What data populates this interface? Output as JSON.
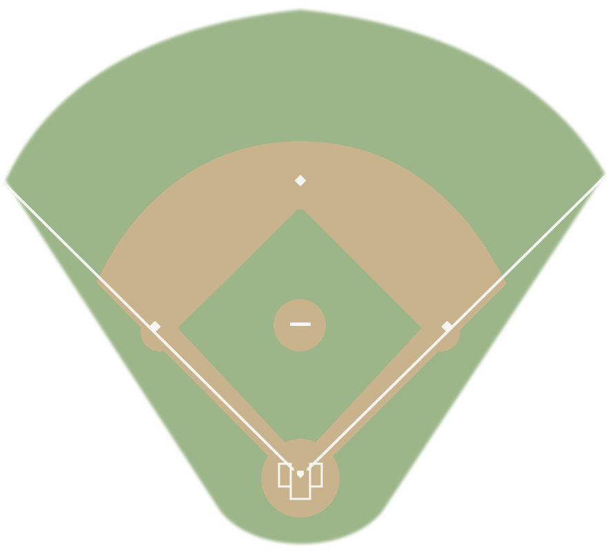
{
  "diagram": {
    "subject": "baseball-field",
    "colors": {
      "grass": "#9cb689",
      "dirt": "#c9b38d",
      "lines": "#f5f5f2",
      "background": "#ffffff"
    },
    "elements": [
      "outfield-grass",
      "infield-dirt",
      "infield-grass",
      "pitchers-mound",
      "pitchers-rubber",
      "home-plate-circle",
      "home-plate",
      "batters-box-left",
      "batters-box-right",
      "catchers-box",
      "first-base",
      "second-base",
      "third-base",
      "left-foul-line",
      "right-foul-line"
    ]
  }
}
